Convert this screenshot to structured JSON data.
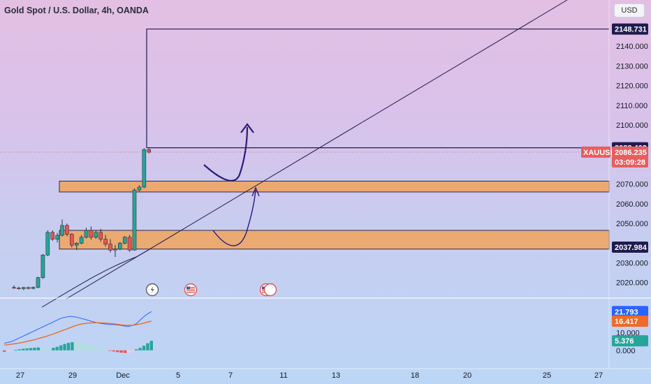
{
  "header": {
    "title": "Gold Spot / U.S. Dollar, 4h, OANDA",
    "currency_button": "USD"
  },
  "chart_data": {
    "type": "candlestick",
    "symbol": "XAUUSD",
    "x_ticks": [
      "27",
      "29",
      "Dec",
      "5",
      "7",
      "11",
      "13",
      "18",
      "20",
      "25",
      "27"
    ],
    "price_axis": {
      "ticks": [
        "2140.000",
        "2130.000",
        "2120.000",
        "2110.000",
        "2100.000",
        "2070.000",
        "2060.000",
        "2050.000",
        "2030.000",
        "2020.000"
      ],
      "range": [
        2016,
        2150
      ]
    },
    "price_tags": [
      {
        "label": "2148.731",
        "value": 2148.731,
        "kind": "line",
        "color": "#1f1b4d",
        "text_color": "#ffffff"
      },
      {
        "label": "2088.462",
        "value": 2088.462,
        "kind": "line",
        "color": "#1f1b4d",
        "text_color": "#ffffff"
      },
      {
        "label": "2037.984",
        "value": 2037.984,
        "kind": "line",
        "color": "#1f1b4d",
        "text_color": "#ffffff"
      }
    ],
    "last_price": {
      "symbol": "XAUUSD",
      "label": "2086.235",
      "countdown": "03:09:28",
      "color": "#e85d5d"
    },
    "zones": [
      {
        "top": 2071.5,
        "bottom": 2066.0,
        "color": "#f0a35c"
      },
      {
        "top": 2046.5,
        "bottom": 2037.0,
        "color": "#f0a35c"
      }
    ],
    "target_box": {
      "top": 2148.731,
      "bottom": 2088.462
    },
    "candles": [
      {
        "o": 2017.5,
        "h": 2018.6,
        "l": 2016.9,
        "c": 2017.2
      },
      {
        "o": 2017.2,
        "h": 2017.9,
        "l": 2016.5,
        "c": 2016.9
      },
      {
        "o": 2016.9,
        "h": 2017.8,
        "l": 2016.2,
        "c": 2017.5
      },
      {
        "o": 2017.5,
        "h": 2017.9,
        "l": 2016.6,
        "c": 2017.0
      },
      {
        "o": 2017.0,
        "h": 2018.0,
        "l": 2016.6,
        "c": 2017.6
      },
      {
        "o": 2017.6,
        "h": 2023.0,
        "l": 2017.1,
        "c": 2022.5
      },
      {
        "o": 2022.5,
        "h": 2034.5,
        "l": 2021.9,
        "c": 2034.0
      },
      {
        "o": 2034.0,
        "h": 2046.5,
        "l": 2033.4,
        "c": 2045.5
      },
      {
        "o": 2045.5,
        "h": 2046.5,
        "l": 2041.2,
        "c": 2042.0
      },
      {
        "o": 2042.0,
        "h": 2045.2,
        "l": 2040.4,
        "c": 2044.0
      },
      {
        "o": 2044.0,
        "h": 2052.0,
        "l": 2043.4,
        "c": 2049.0
      },
      {
        "o": 2049.0,
        "h": 2050.0,
        "l": 2043.5,
        "c": 2044.5
      },
      {
        "o": 2044.5,
        "h": 2045.1,
        "l": 2037.8,
        "c": 2039.0
      },
      {
        "o": 2039.0,
        "h": 2040.5,
        "l": 2036.5,
        "c": 2040.0
      },
      {
        "o": 2040.0,
        "h": 2044.1,
        "l": 2039.5,
        "c": 2043.0
      },
      {
        "o": 2043.0,
        "h": 2047.8,
        "l": 2042.4,
        "c": 2046.5
      },
      {
        "o": 2046.5,
        "h": 2048.5,
        "l": 2041.8,
        "c": 2043.0
      },
      {
        "o": 2043.0,
        "h": 2046.5,
        "l": 2042.2,
        "c": 2045.5
      },
      {
        "o": 2045.5,
        "h": 2047.3,
        "l": 2040.7,
        "c": 2042.0
      },
      {
        "o": 2042.0,
        "h": 2044.2,
        "l": 2038.3,
        "c": 2039.5
      },
      {
        "o": 2039.5,
        "h": 2042.0,
        "l": 2035.3,
        "c": 2036.5
      },
      {
        "o": 2036.5,
        "h": 2039.0,
        "l": 2033.0,
        "c": 2037.0
      },
      {
        "o": 2037.0,
        "h": 2040.6,
        "l": 2036.4,
        "c": 2040.0
      },
      {
        "o": 2040.0,
        "h": 2043.6,
        "l": 2039.4,
        "c": 2043.0
      },
      {
        "o": 2043.0,
        "h": 2044.2,
        "l": 2035.6,
        "c": 2036.5
      },
      {
        "o": 2036.5,
        "h": 2067.8,
        "l": 2036.2,
        "c": 2067.0
      },
      {
        "o": 2067.0,
        "h": 2069.4,
        "l": 2066.3,
        "c": 2068.5
      },
      {
        "o": 2068.5,
        "h": 2088.3,
        "l": 2067.9,
        "c": 2087.5
      },
      {
        "o": 2087.5,
        "h": 2088.4,
        "l": 2085.6,
        "c": 2086.2
      }
    ],
    "oscillator": {
      "tags": [
        {
          "label": "21.793",
          "value": 21.793,
          "color": "#2962ff"
        },
        {
          "label": "16.417",
          "value": 16.417,
          "color": "#f06a28"
        },
        {
          "label": "5.376",
          "value": 5.376,
          "color": "#26a69a"
        }
      ],
      "ticks": [
        "10.000",
        "0.000"
      ],
      "range": [
        -4,
        27
      ],
      "histogram": [
        -0.8,
        -0.5,
        -0.2,
        0.2,
        0.6,
        0.9,
        1.1,
        1.3,
        1.5,
        1.6,
        1.4,
        1.2,
        1.0,
        1.4,
        2.0,
        2.8,
        3.6,
        4.2,
        4.6,
        4.5,
        4.2,
        3.8,
        3.4,
        2.8,
        2.2,
        1.6,
        1.0,
        0.4,
        -0.2,
        -0.6,
        -1.0,
        -1.3,
        -1.5,
        -1.2,
        -0.6,
        0.6,
        1.4,
        2.6,
        4.0,
        5.376
      ],
      "macd": [
        4,
        4.5,
        5,
        6,
        7,
        8,
        9,
        10,
        11,
        12,
        13,
        14,
        15,
        16,
        17,
        18,
        18.5,
        19,
        19,
        18.7,
        18.2,
        17.6,
        17,
        16.4,
        15.8,
        15.3,
        15,
        14.8,
        14.6,
        14.5,
        14.3,
        14.0,
        13.6,
        13.5,
        14,
        15,
        17,
        19,
        20.5,
        21.793
      ],
      "signal": [
        3,
        3.2,
        3.5,
        3.8,
        4.1,
        4.5,
        5,
        5.5,
        6,
        6.6,
        7.2,
        7.8,
        8.5,
        9.2,
        10,
        10.8,
        11.6,
        12.4,
        13.2,
        14,
        14.6,
        15,
        15.3,
        15.4,
        15.5,
        15.5,
        15.4,
        15.3,
        15.1,
        14.9,
        14.6,
        14.3,
        14.1,
        14.0,
        14.1,
        14.4,
        14.8,
        15.3,
        15.9,
        16.417
      ]
    },
    "event_icons": [
      "lightning-icon",
      "us-flag-icon",
      "us-flag-icon"
    ],
    "colors": {
      "up": "#26a69a",
      "down": "#ef5350",
      "line": "#1f1b4d",
      "zone": "#f0a35c",
      "macd": "#2962ff",
      "signal": "#f06a28"
    }
  }
}
